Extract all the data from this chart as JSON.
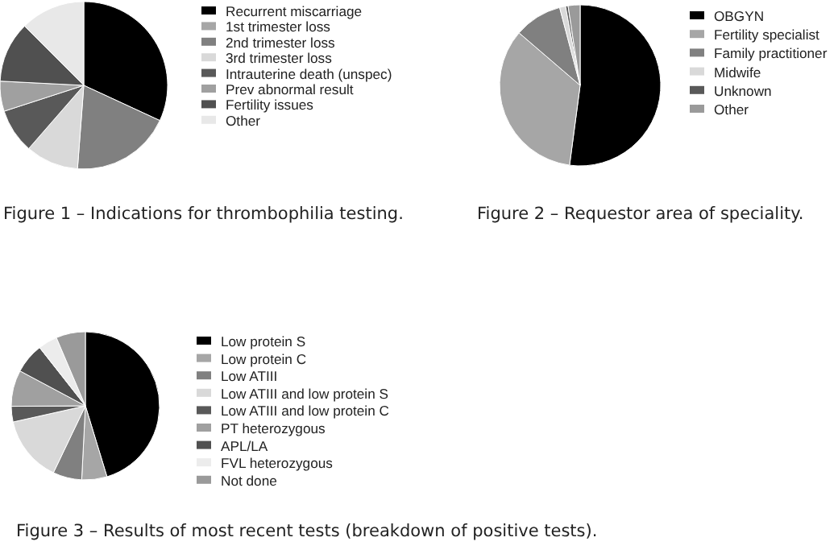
{
  "chart_data": [
    {
      "type": "pie",
      "title": "Figure 1 – Indications for thrombophilia testing.",
      "legend": "right",
      "categories": [
        "Recurrent miscarriage",
        "1st trimester loss",
        "2nd trimester loss",
        "3rd trimester loss",
        "Intrauterine death (unspec)",
        "Prev abnormal result",
        "Fertility issues",
        "Other"
      ],
      "values": [
        31.9,
        null,
        19.3,
        10.2,
        8.6,
        5.8,
        11.7,
        12.5
      ],
      "colors": [
        "#000000",
        "#a6a6a6",
        "#808080",
        "#d9d9d9",
        "#595959",
        "#a0a0a0",
        "#505050",
        "#e8e8e8"
      ]
    },
    {
      "type": "pie",
      "title": "Figure 2 – Requestor area of speciality.",
      "legend": "right",
      "categories": [
        "OBGYN",
        "Fertility specialist",
        "Family practitioner",
        "Midwife",
        "Unknown",
        "Other"
      ],
      "values": [
        52.1,
        34.2,
        9.6,
        1.2,
        0.5,
        2.4
      ],
      "colors": [
        "#000000",
        "#a6a6a6",
        "#808080",
        "#d9d9d9",
        "#595959",
        "#9a9a9a"
      ]
    },
    {
      "type": "pie",
      "title": "Figure 3 – Results of most recent tests (breakdown of positive tests).",
      "legend": "right",
      "categories": [
        "Low protein S",
        "Low protein C",
        "Low ATIII",
        "Low ATIII and low protein S",
        "Low ATIII and low protein C",
        "PT heterozygous",
        "APL/LA",
        "FVL heterozygous",
        "Not done"
      ],
      "values": [
        45.3,
        5.5,
        6.3,
        14.4,
        3.4,
        7.9,
        6.6,
        4.2,
        6.4
      ],
      "colors": [
        "#000000",
        "#a6a6a6",
        "#808080",
        "#d9d9d9",
        "#595959",
        "#a0a0a0",
        "#505050",
        "#ececec",
        "#9a9a9a"
      ]
    }
  ]
}
